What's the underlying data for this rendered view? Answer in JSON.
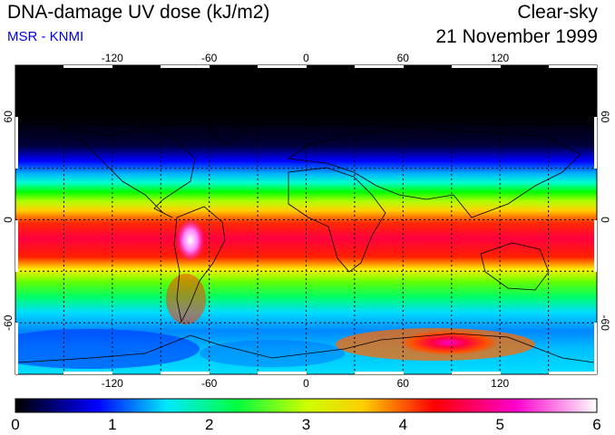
{
  "header": {
    "title": "DNA-damage UV dose (kJ/m2)",
    "subtitle": "MSR - KNMI",
    "condition": "Clear-sky",
    "date": "21 November 1999"
  },
  "map": {
    "lon_ticks": [
      -120,
      -60,
      0,
      60,
      120
    ],
    "lat_ticks": [
      60,
      0,
      -60
    ],
    "lat_range": [
      -90,
      90
    ],
    "lon_range": [
      -180,
      180
    ],
    "grid_lines": "dotted",
    "colors": {
      "night": "#000000",
      "low": "#0000ff",
      "mid": "#00ff00",
      "high": "#ff0000",
      "max": "#ffffff"
    }
  },
  "colorbar": {
    "min": 0,
    "max": 6,
    "labels": [
      "0",
      "1",
      "2",
      "3",
      "4",
      "5",
      "6"
    ],
    "colors": [
      "#000000",
      "#0000ff",
      "#00e8ff",
      "#00ff00",
      "#ffff00",
      "#ff0000",
      "#ff00ff",
      "#ffffff"
    ]
  }
}
